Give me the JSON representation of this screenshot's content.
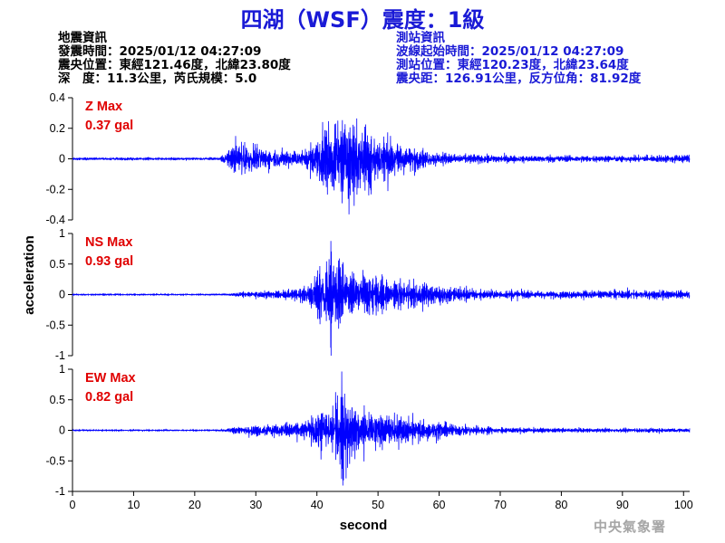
{
  "title": "四湖（WSF）震度：1級",
  "earthquake_info": {
    "heading": "地震資訊",
    "time": "發震時間：2025/01/12 04:27:09",
    "epicenter": "震央位置：東經121.46度，北緯23.80度",
    "depth_magnitude": "深　度：11.3公里，芮氏規模：5.0"
  },
  "station_info": {
    "heading": "測站資訊",
    "waveform_start": "波線起始時間：2025/01/12 04:27:09",
    "location": "測站位置：東經120.23度，北緯23.64度",
    "distance_azimuth": "震央距：126.91公里，反方位角：81.92度"
  },
  "credit": "中央氣象署",
  "colors": {
    "title": "#1a1ad6",
    "station_info": "#1a1ad6",
    "waveform": "#0000ff",
    "max_label": "#e00000",
    "credit": "#a6a6a6"
  },
  "chart_data": {
    "type": "line",
    "xlabel": "second",
    "ylabel": "acceleration",
    "x_ticks": [
      "0",
      "10",
      "20",
      "30",
      "40",
      "50",
      "60",
      "70",
      "80",
      "90",
      "100"
    ],
    "xlim": [
      0,
      101
    ],
    "series": [
      {
        "name": "Z Max",
        "max_value": "0.37 gal",
        "ylim": [
          -0.4,
          0.4
        ],
        "y_ticks": [
          "0.4",
          "0.2",
          "0",
          "-0.2",
          "-0.4"
        ],
        "envelope": {
          "t": [
            0,
            24,
            26,
            28,
            30,
            34,
            38,
            40,
            42,
            44,
            46,
            48,
            50,
            54,
            58,
            62,
            66,
            70,
            80,
            90,
            101
          ],
          "a": [
            0.01,
            0.01,
            0.1,
            0.14,
            0.1,
            0.07,
            0.06,
            0.18,
            0.28,
            0.32,
            0.32,
            0.28,
            0.2,
            0.12,
            0.06,
            0.04,
            0.035,
            0.03,
            0.025,
            0.025,
            0.03
          ]
        }
      },
      {
        "name": "NS Max",
        "max_value": "0.93 gal",
        "ylim": [
          -1,
          1
        ],
        "y_ticks": [
          "1",
          "0.5",
          "0",
          "-0.5",
          "-1"
        ],
        "envelope": {
          "t": [
            0,
            24,
            26,
            28,
            30,
            34,
            38,
            40,
            42,
            44,
            46,
            48,
            50,
            54,
            58,
            62,
            66,
            70,
            80,
            90,
            101
          ],
          "a": [
            0.01,
            0.01,
            0.03,
            0.05,
            0.06,
            0.07,
            0.12,
            0.4,
            0.8,
            0.55,
            0.45,
            0.4,
            0.33,
            0.25,
            0.22,
            0.15,
            0.1,
            0.08,
            0.07,
            0.08,
            0.09
          ]
        }
      },
      {
        "name": "EW Max",
        "max_value": "0.82 gal",
        "ylim": [
          -1,
          1
        ],
        "y_ticks": [
          "1",
          "0.5",
          "0",
          "-0.5",
          "-1"
        ],
        "envelope": {
          "t": [
            0,
            24,
            26,
            28,
            30,
            34,
            38,
            40,
            42,
            44,
            46,
            48,
            50,
            54,
            58,
            62,
            66,
            70,
            80,
            90,
            101
          ],
          "a": [
            0.01,
            0.01,
            0.05,
            0.08,
            0.1,
            0.13,
            0.18,
            0.35,
            0.5,
            0.75,
            0.55,
            0.45,
            0.35,
            0.25,
            0.2,
            0.12,
            0.08,
            0.06,
            0.04,
            0.04,
            0.04
          ]
        }
      }
    ]
  }
}
